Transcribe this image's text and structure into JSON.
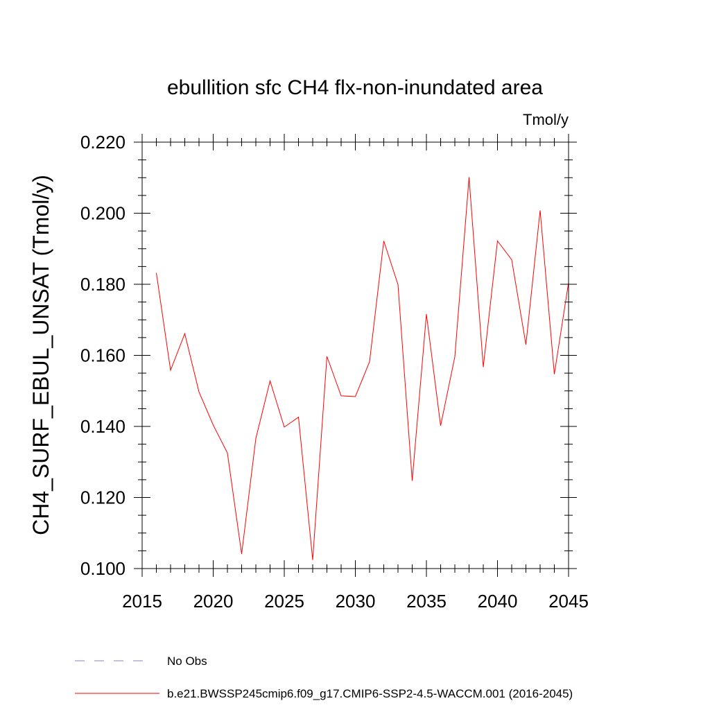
{
  "chart_data": {
    "type": "line",
    "title": "ebullition sfc CH4 flx-non-inundated area",
    "units_label": "Tmol/y",
    "ylabel": "CH4_SURF_EBUL_UNSAT  (Tmol/y)",
    "xlabel": "",
    "xlim": [
      2015,
      2045
    ],
    "ylim": [
      0.1,
      0.22
    ],
    "x_ticks": [
      2015,
      2020,
      2025,
      2030,
      2035,
      2040,
      2045
    ],
    "x_tick_labels": [
      "2015",
      "2020",
      "2025",
      "2030",
      "2035",
      "2040",
      "2045"
    ],
    "y_ticks": [
      0.1,
      0.12,
      0.14,
      0.16,
      0.18,
      0.2,
      0.22
    ],
    "y_tick_labels": [
      "0.100",
      "0.120",
      "0.140",
      "0.160",
      "0.180",
      "0.200",
      "0.220"
    ],
    "grid": false,
    "series": [
      {
        "name": "b.e21.BWSSP245cmip6.f09_g17.CMIP6-SSP2-4.5-WACCM.001 (2016-2045)",
        "color": "#ff0000",
        "x": [
          2016,
          2017,
          2018,
          2019,
          2020,
          2021,
          2022,
          2023,
          2024,
          2025,
          2026,
          2027,
          2028,
          2029,
          2030,
          2031,
          2032,
          2033,
          2034,
          2035,
          2036,
          2037,
          2038,
          2039,
          2040,
          2041,
          2042,
          2043,
          2044,
          2045
        ],
        "y": [
          0.1832,
          0.1558,
          0.1661,
          0.1497,
          0.1404,
          0.1325,
          0.1041,
          0.1366,
          0.1528,
          0.1398,
          0.1426,
          0.1024,
          0.1597,
          0.1486,
          0.1484,
          0.1582,
          0.1922,
          0.1799,
          0.1247,
          0.1716,
          0.1402,
          0.1596,
          0.2101,
          0.1567,
          0.1922,
          0.1869,
          0.163,
          0.2008,
          0.1547,
          0.1805
        ]
      }
    ],
    "legend": [
      {
        "label": "No Obs",
        "style": "dashed",
        "color": "#8c7fc7"
      },
      {
        "label": "b.e21.BWSSP245cmip6.f09_g17.CMIP6-SSP2-4.5-WACCM.001 (2016-2045)",
        "style": "solid",
        "color": "#ff0000"
      }
    ]
  }
}
